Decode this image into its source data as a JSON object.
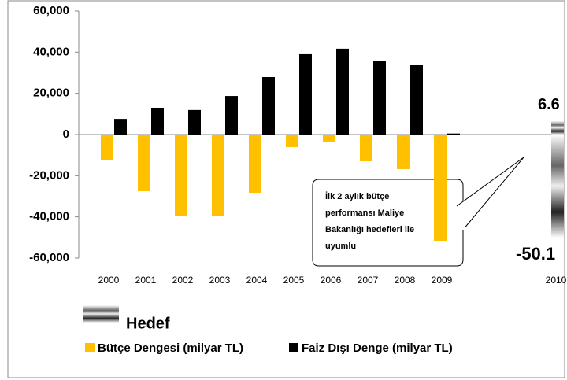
{
  "chart_data": {
    "type": "bar",
    "categories": [
      "2000",
      "2001",
      "2002",
      "2003",
      "2004",
      "2005",
      "2006",
      "2007",
      "2008",
      "2009",
      "2010"
    ],
    "series": [
      {
        "name": "Bütçe Dengesi (milyar TL)",
        "color": "#ffc000",
        "values": [
          -12600,
          -27500,
          -39400,
          -39500,
          -28300,
          -6100,
          -3800,
          -13000,
          -16800,
          -51600,
          null
        ]
      },
      {
        "name": "Faiz Dışı Denge (milyar TL)",
        "color": "#000000",
        "values": [
          7600,
          13000,
          11900,
          18700,
          27900,
          39000,
          41700,
          35600,
          33700,
          500,
          null
        ]
      }
    ],
    "targets": {
      "name": "Hedef",
      "category": "2010",
      "values": [
        -50100,
        6600
      ],
      "value_labels": [
        "-50.1",
        "6.6"
      ]
    },
    "ylim": [
      -60000,
      60000
    ],
    "yticks": [
      {
        "value": -60000,
        "label": "-60,000"
      },
      {
        "value": -40000,
        "label": "-40,000"
      },
      {
        "value": -20000,
        "label": "-20,000"
      },
      0,
      {
        "value": 20000,
        "label": "20,000"
      },
      {
        "value": 40000,
        "label": "40,000"
      },
      {
        "value": 60000,
        "label": "60,000"
      }
    ],
    "grid": false,
    "annotation": [
      "İlk 2 aylık bütçe",
      "performansı Maliye",
      "Bakanlığı hedefleri ile",
      "uyumlu"
    ]
  }
}
